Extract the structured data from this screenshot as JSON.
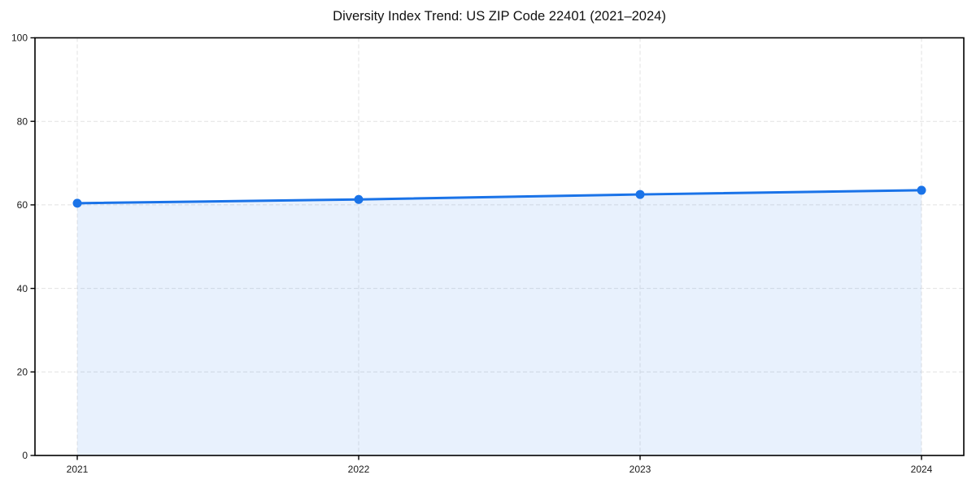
{
  "window": {
    "background_color": "#ffffff"
  },
  "chart_data": {
    "type": "area",
    "title": "Diversity Index Trend: US ZIP Code 22401 (2021–2024)",
    "categories": [
      "2021",
      "2022",
      "2023",
      "2024"
    ],
    "series": [
      {
        "name": "Diversity Index",
        "values": [
          60.4,
          61.3,
          62.5,
          63.5
        ]
      }
    ],
    "xlabel": "",
    "ylabel": "",
    "ylim": [
      0,
      100
    ],
    "y_ticks": [
      0,
      20,
      40,
      60,
      80,
      100
    ],
    "grid": "both-axes, dashed",
    "legend_position": "none",
    "colors": {
      "line": "#1a73e8",
      "marker": "#1a73e8",
      "area_fill": "rgba(26,115,232,0.10)",
      "gridline": "#e2e2e2",
      "axis_frame": "#000000",
      "tick_text": "#1a1a1a",
      "title_text": "#111111"
    }
  }
}
